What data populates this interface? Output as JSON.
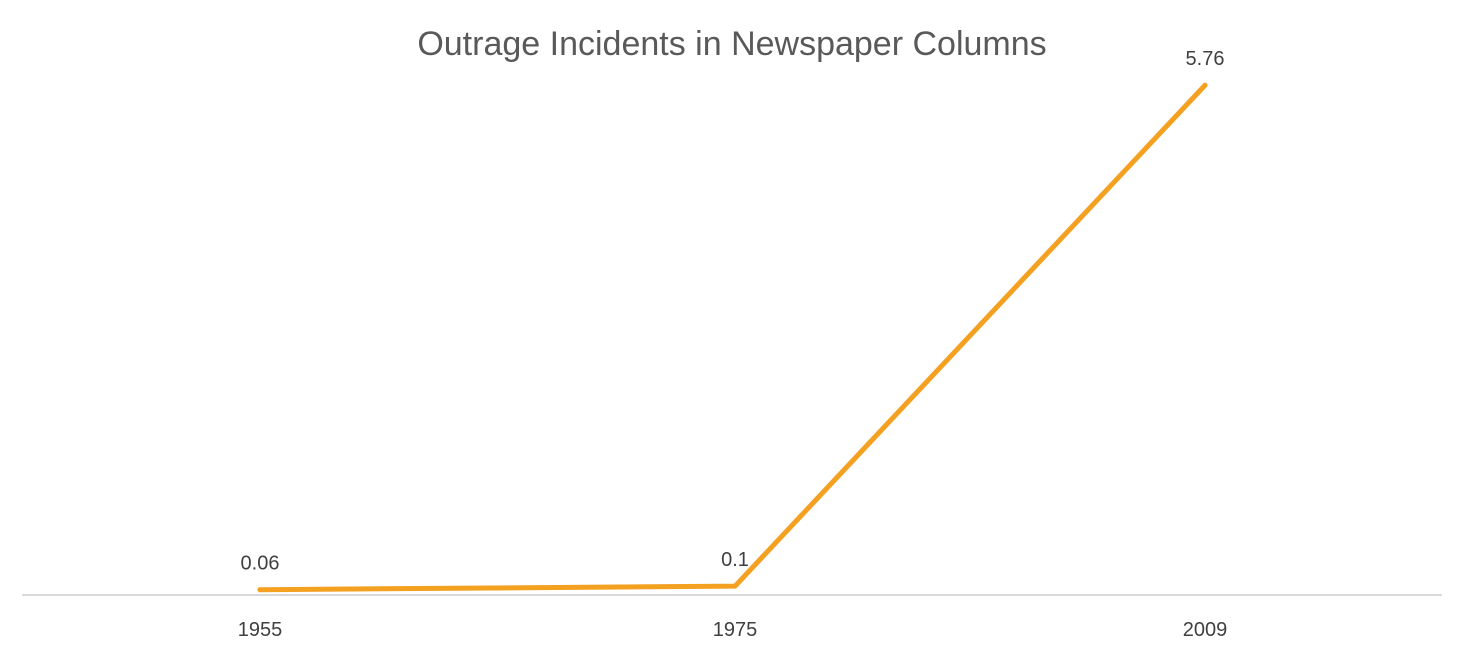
{
  "chart_data": {
    "type": "line",
    "title": "Outrage Incidents in Newspaper Columns",
    "xlabel": "",
    "ylabel": "",
    "categories": [
      "1955",
      "1975",
      "2009"
    ],
    "series": [
      {
        "values": [
          0.06,
          0.1,
          5.76
        ],
        "data_labels": [
          "0.06",
          "0.1",
          "5.76"
        ],
        "color": "#F4A020"
      }
    ],
    "ylim": [
      0,
      6.2
    ],
    "grid": false,
    "legend": "none",
    "axis_color": "#D9D9D9"
  }
}
